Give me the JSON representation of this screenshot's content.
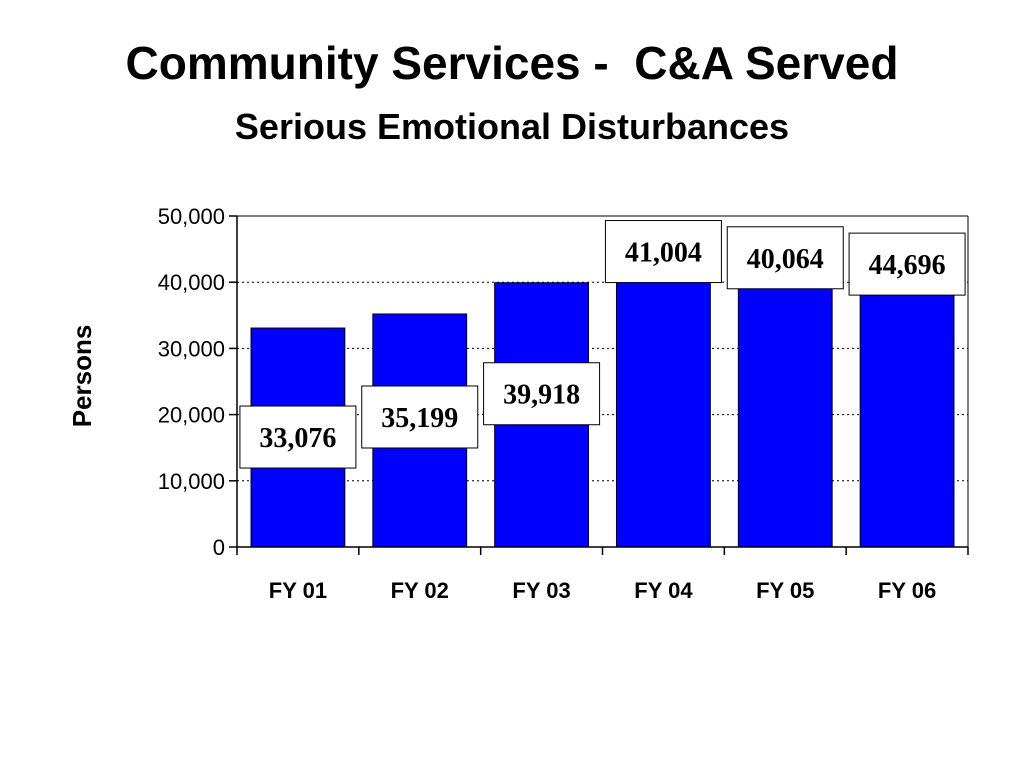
{
  "header": {
    "title": "Community Services -  C&A Served",
    "subtitle": "Serious Emotional Disturbances"
  },
  "chart_data": {
    "type": "bar",
    "title": "Community Services -  C&A Served",
    "subtitle": "Serious Emotional Disturbances",
    "xlabel": "",
    "ylabel": "Persons",
    "categories": [
      "FY 01",
      "FY 02",
      "FY 03",
      "FY 04",
      "FY 05",
      "FY 06"
    ],
    "values": [
      33076,
      35199,
      39918,
      41004,
      40064,
      44696
    ],
    "data_labels": [
      "33,076",
      "35,199",
      "39,918",
      "41,004",
      "40,064",
      "44,696"
    ],
    "ylim": [
      0,
      50000
    ],
    "yticks": [
      0,
      10000,
      20000,
      30000,
      40000,
      50000
    ],
    "ytick_labels": [
      "0",
      "10,000",
      "20,000",
      "30,000",
      "40,000",
      "50,000"
    ],
    "grid": true,
    "legend": "none",
    "colors": {
      "bar": "#0000ff",
      "bar_outline": "#000000",
      "grid": "#000000"
    }
  }
}
